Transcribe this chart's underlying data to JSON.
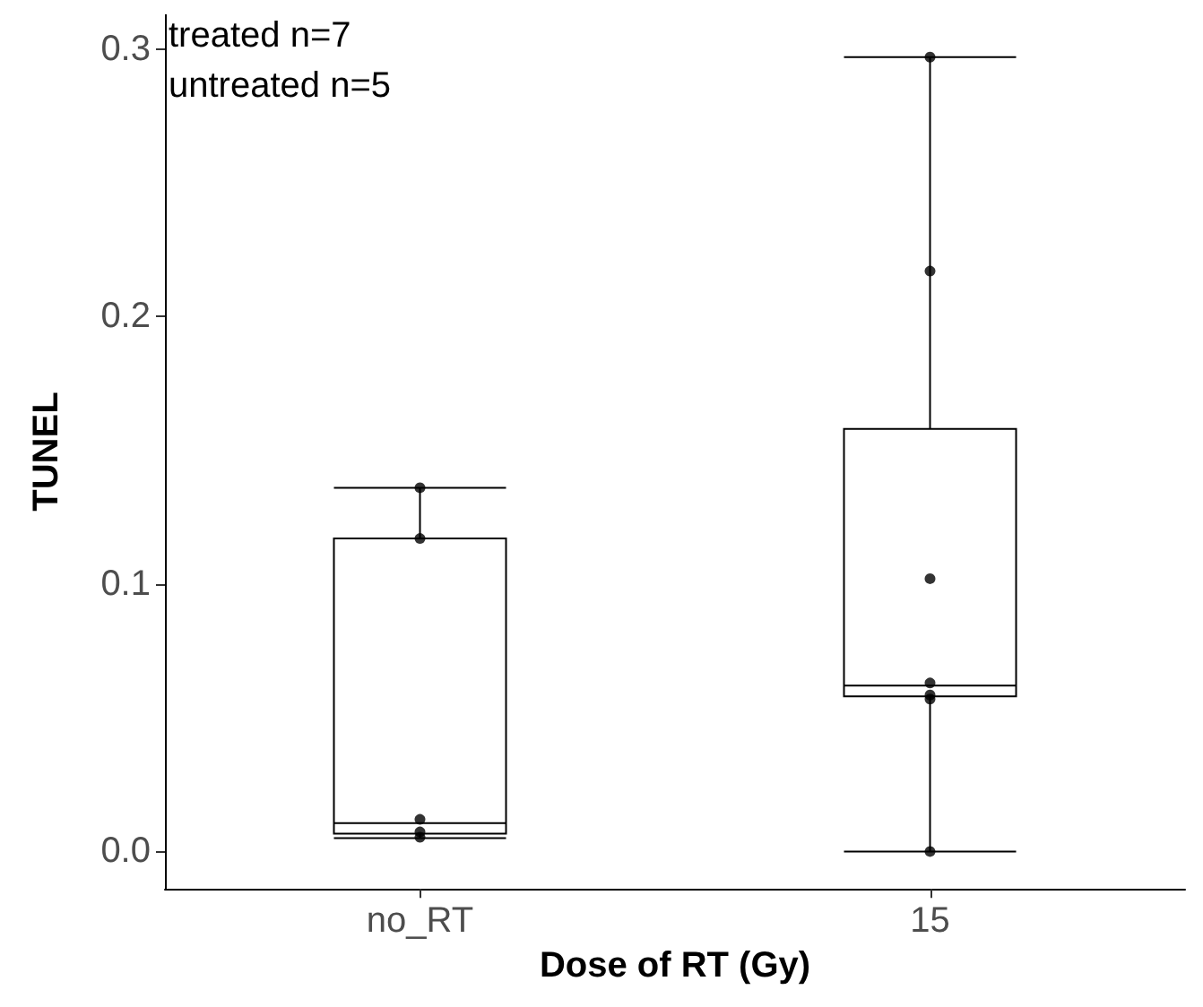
{
  "chart_data": {
    "type": "box",
    "xlabel": "Dose of RT (Gy)",
    "ylabel": "TUNEL",
    "categories": [
      "no_RT",
      "15"
    ],
    "ylim": [
      -0.014,
      0.313
    ],
    "yticks": [
      {
        "value": 0,
        "label": "0.0"
      },
      0.1,
      0.2,
      0.3
    ],
    "grid": false,
    "annotations": [
      "treated n=7",
      "untreated n=5"
    ],
    "series": [
      {
        "color": "#000000",
        "boxes": [
          {
            "low": 0.005,
            "q1": 0.0067,
            "median": 0.0106,
            "q3": 0.117,
            "high": 0.136
          },
          {
            "low": 0,
            "q1": 0.058,
            "median": 0.062,
            "q3": 0.158,
            "high": 0.297
          }
        ]
      },
      {
        "type": "scatter",
        "color": "#000000",
        "marker": "circle",
        "x": [
          "no_RT",
          "no_RT",
          "no_RT",
          "no_RT",
          "no_RT",
          "15",
          "15",
          "15",
          "15",
          "15",
          "15",
          "15"
        ],
        "values": [
          0.117,
          0.136,
          0.012,
          0.0073,
          0.0053,
          0.297,
          0.217,
          0.102,
          0.063,
          0.057,
          0.0585,
          0
        ]
      }
    ]
  }
}
